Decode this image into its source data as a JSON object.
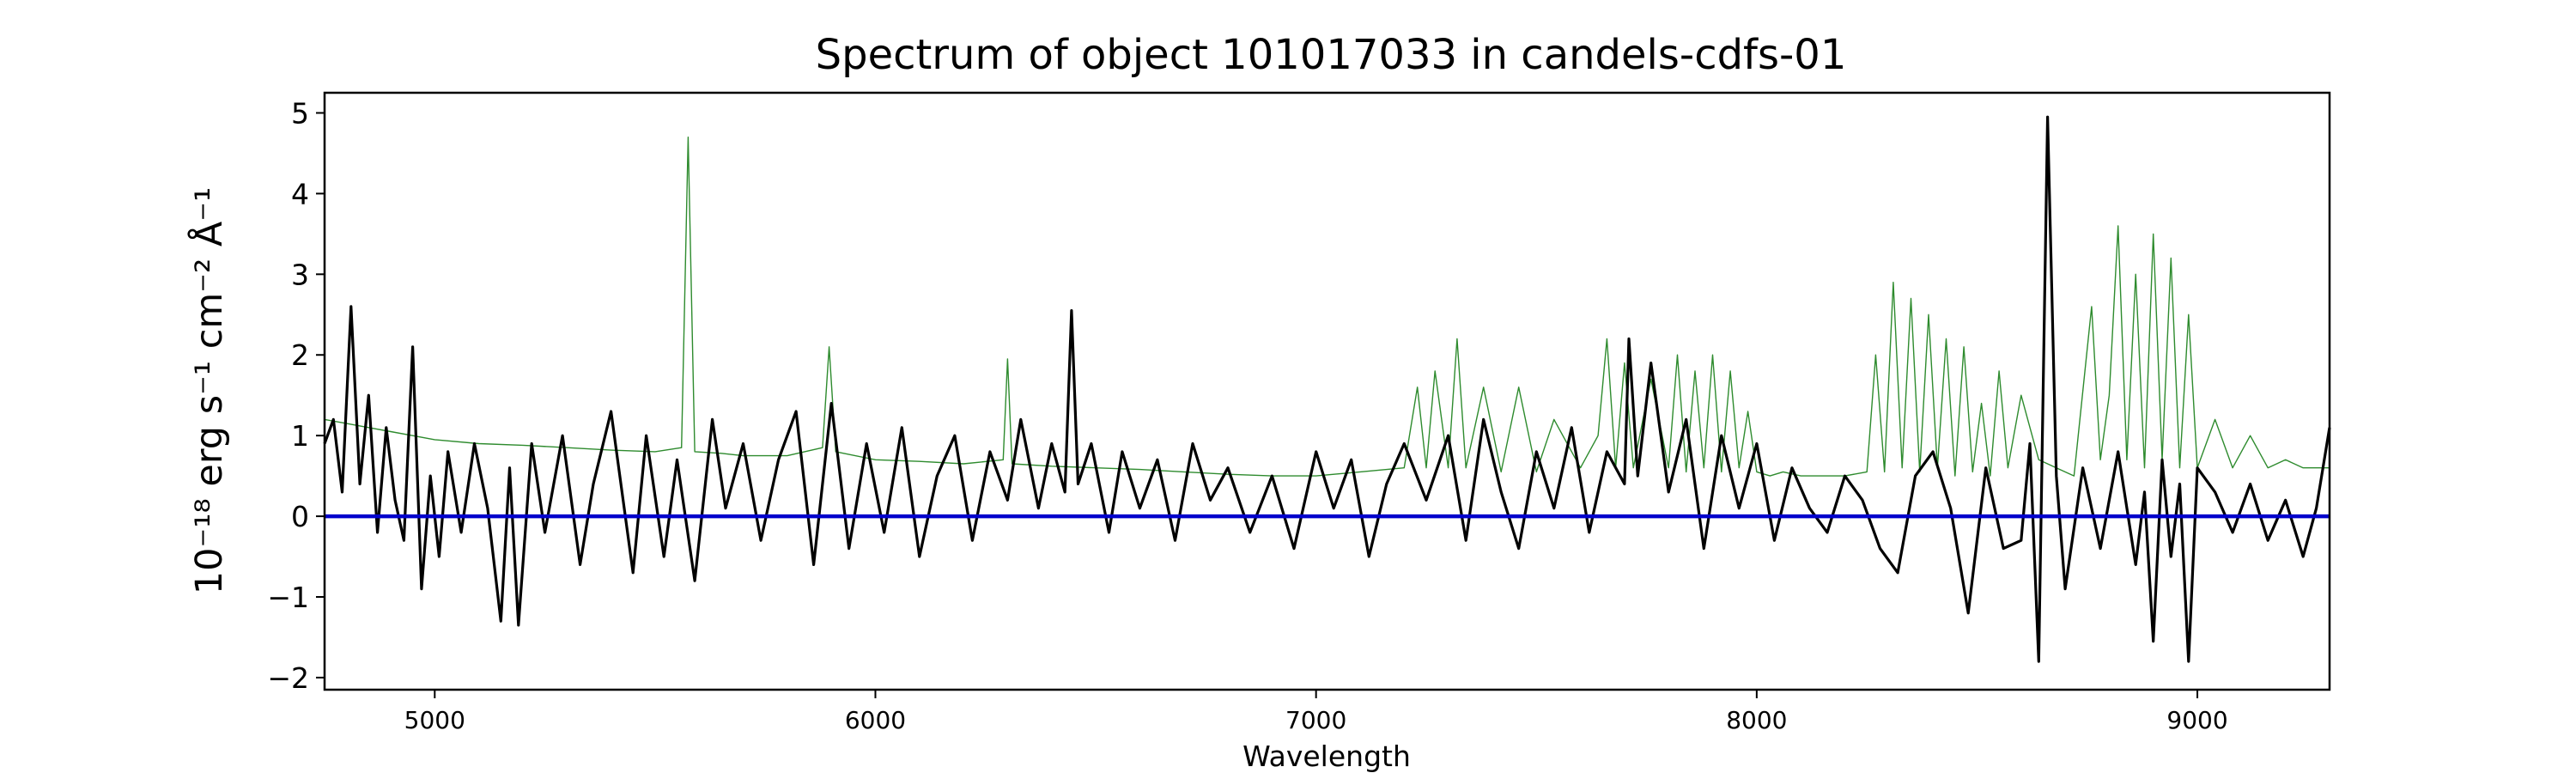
{
  "chart_data": {
    "type": "line",
    "title": "Spectrum of object 101017033 in candels-cdfs-01",
    "xlabel": "Wavelength",
    "ylabel": "10⁻¹⁸ erg s⁻¹ cm⁻² Å⁻¹",
    "xlim": [
      4750,
      9300
    ],
    "ylim": [
      -2.15,
      5.25
    ],
    "xticks": [
      5000,
      6000,
      7000,
      8000,
      9000
    ],
    "xtick_labels": [
      "5000",
      "6000",
      "7000",
      "8000",
      "9000"
    ],
    "yticks": [
      -2,
      -1,
      0,
      1,
      2,
      3,
      4,
      5
    ],
    "ytick_labels": [
      "−2",
      "−1",
      "0",
      "1",
      "2",
      "3",
      "4",
      "5"
    ],
    "grid": false,
    "baseline": {
      "y": 0,
      "color": "#0000cc"
    },
    "series": [
      {
        "role": "spectrum",
        "color": "#000000",
        "x": [
          4750,
          4770,
          4790,
          4810,
          4830,
          4850,
          4870,
          4890,
          4910,
          4930,
          4950,
          4970,
          4990,
          5010,
          5030,
          5060,
          5090,
          5120,
          5150,
          5170,
          5190,
          5220,
          5250,
          5290,
          5330,
          5360,
          5400,
          5450,
          5480,
          5520,
          5550,
          5590,
          5630,
          5660,
          5700,
          5740,
          5780,
          5820,
          5860,
          5900,
          5940,
          5980,
          6020,
          6060,
          6100,
          6140,
          6180,
          6220,
          6260,
          6300,
          6330,
          6370,
          6400,
          6430,
          6445,
          6460,
          6490,
          6530,
          6560,
          6600,
          6640,
          6680,
          6720,
          6760,
          6800,
          6850,
          6900,
          6950,
          7000,
          7040,
          7080,
          7120,
          7160,
          7200,
          7250,
          7300,
          7340,
          7380,
          7420,
          7460,
          7500,
          7540,
          7580,
          7620,
          7660,
          7700,
          7710,
          7730,
          7760,
          7800,
          7840,
          7880,
          7920,
          7960,
          8000,
          8040,
          8080,
          8120,
          8160,
          8200,
          8240,
          8280,
          8320,
          8360,
          8400,
          8440,
          8480,
          8520,
          8560,
          8600,
          8620,
          8640,
          8660,
          8680,
          8700,
          8740,
          8780,
          8820,
          8860,
          8880,
          8900,
          8920,
          8940,
          8960,
          8980,
          9000,
          9040,
          9080,
          9120,
          9160,
          9200,
          9240,
          9270,
          9300
        ],
        "y": [
          0.9,
          1.2,
          0.3,
          2.6,
          0.4,
          1.5,
          -0.2,
          1.1,
          0.2,
          -0.3,
          2.1,
          -0.9,
          0.5,
          -0.5,
          0.8,
          -0.2,
          0.9,
          0.1,
          -1.3,
          0.6,
          -1.35,
          0.9,
          -0.2,
          1.0,
          -0.6,
          0.4,
          1.3,
          -0.7,
          1.0,
          -0.5,
          0.7,
          -0.8,
          1.2,
          0.1,
          0.9,
          -0.3,
          0.7,
          1.3,
          -0.6,
          1.4,
          -0.4,
          0.9,
          -0.2,
          1.1,
          -0.5,
          0.5,
          1.0,
          -0.3,
          0.8,
          0.2,
          1.2,
          0.1,
          0.9,
          0.3,
          2.55,
          0.4,
          0.9,
          -0.2,
          0.8,
          0.1,
          0.7,
          -0.3,
          0.9,
          0.2,
          0.6,
          -0.2,
          0.5,
          -0.4,
          0.8,
          0.1,
          0.7,
          -0.5,
          0.4,
          0.9,
          0.2,
          1.0,
          -0.3,
          1.2,
          0.3,
          -0.4,
          0.8,
          0.1,
          1.1,
          -0.2,
          0.8,
          0.4,
          2.2,
          0.5,
          1.9,
          0.3,
          1.2,
          -0.4,
          1.0,
          0.1,
          0.9,
          -0.3,
          0.6,
          0.1,
          -0.2,
          0.5,
          0.2,
          -0.4,
          -0.7,
          0.5,
          0.8,
          0.1,
          -1.2,
          0.6,
          -0.4,
          -0.3,
          0.9,
          -1.8,
          4.95,
          0.5,
          -0.9,
          0.6,
          -0.4,
          0.8,
          -0.6,
          0.3,
          -1.55,
          0.7,
          -0.5,
          0.4,
          -1.8,
          0.6,
          0.3,
          -0.2,
          0.4,
          -0.3,
          0.2,
          -0.5,
          0.1,
          1.1
        ],
        "line_width": 3.2
      },
      {
        "role": "noise",
        "color": "#2e8b2e",
        "x": [
          4750,
          4800,
          4850,
          4900,
          4950,
          5000,
          5100,
          5200,
          5300,
          5400,
          5500,
          5560,
          5575,
          5590,
          5650,
          5700,
          5800,
          5880,
          5895,
          5910,
          6000,
          6100,
          6200,
          6290,
          6300,
          6310,
          6400,
          6500,
          6600,
          6700,
          6800,
          6900,
          7000,
          7100,
          7200,
          7230,
          7250,
          7270,
          7300,
          7320,
          7340,
          7380,
          7420,
          7460,
          7500,
          7540,
          7600,
          7640,
          7660,
          7680,
          7700,
          7720,
          7760,
          7800,
          7820,
          7840,
          7860,
          7880,
          7900,
          7920,
          7940,
          7960,
          7980,
          8000,
          8030,
          8060,
          8100,
          8150,
          8200,
          8250,
          8270,
          8290,
          8310,
          8330,
          8350,
          8370,
          8390,
          8410,
          8430,
          8450,
          8470,
          8490,
          8510,
          8530,
          8550,
          8570,
          8600,
          8640,
          8680,
          8720,
          8760,
          8780,
          8800,
          8820,
          8840,
          8860,
          8880,
          8900,
          8920,
          8940,
          8960,
          8980,
          9000,
          9040,
          9080,
          9120,
          9160,
          9200,
          9240,
          9300
        ],
        "y": [
          1.2,
          1.15,
          1.1,
          1.05,
          1.0,
          0.95,
          0.9,
          0.88,
          0.85,
          0.82,
          0.8,
          0.85,
          4.7,
          0.8,
          0.78,
          0.75,
          0.75,
          0.85,
          2.1,
          0.8,
          0.7,
          0.68,
          0.65,
          0.7,
          1.95,
          0.65,
          0.62,
          0.6,
          0.58,
          0.55,
          0.52,
          0.5,
          0.5,
          0.55,
          0.6,
          1.6,
          0.6,
          1.8,
          0.6,
          2.2,
          0.6,
          1.6,
          0.55,
          1.6,
          0.55,
          1.2,
          0.6,
          1.0,
          2.2,
          0.6,
          1.9,
          0.6,
          1.7,
          0.6,
          2.0,
          0.55,
          1.8,
          0.6,
          2.0,
          0.55,
          1.8,
          0.6,
          1.3,
          0.55,
          0.5,
          0.55,
          0.5,
          0.5,
          0.5,
          0.55,
          2.0,
          0.55,
          2.9,
          0.6,
          2.7,
          0.55,
          2.5,
          0.6,
          2.2,
          0.5,
          2.1,
          0.55,
          1.4,
          0.5,
          1.8,
          0.6,
          1.5,
          0.7,
          0.6,
          0.5,
          2.6,
          0.7,
          1.5,
          3.6,
          0.7,
          3.0,
          0.6,
          3.5,
          0.7,
          3.2,
          0.6,
          2.5,
          0.6,
          1.2,
          0.6,
          1.0,
          0.6,
          0.7,
          0.6,
          0.6
        ],
        "line_width": 1.4
      }
    ]
  }
}
